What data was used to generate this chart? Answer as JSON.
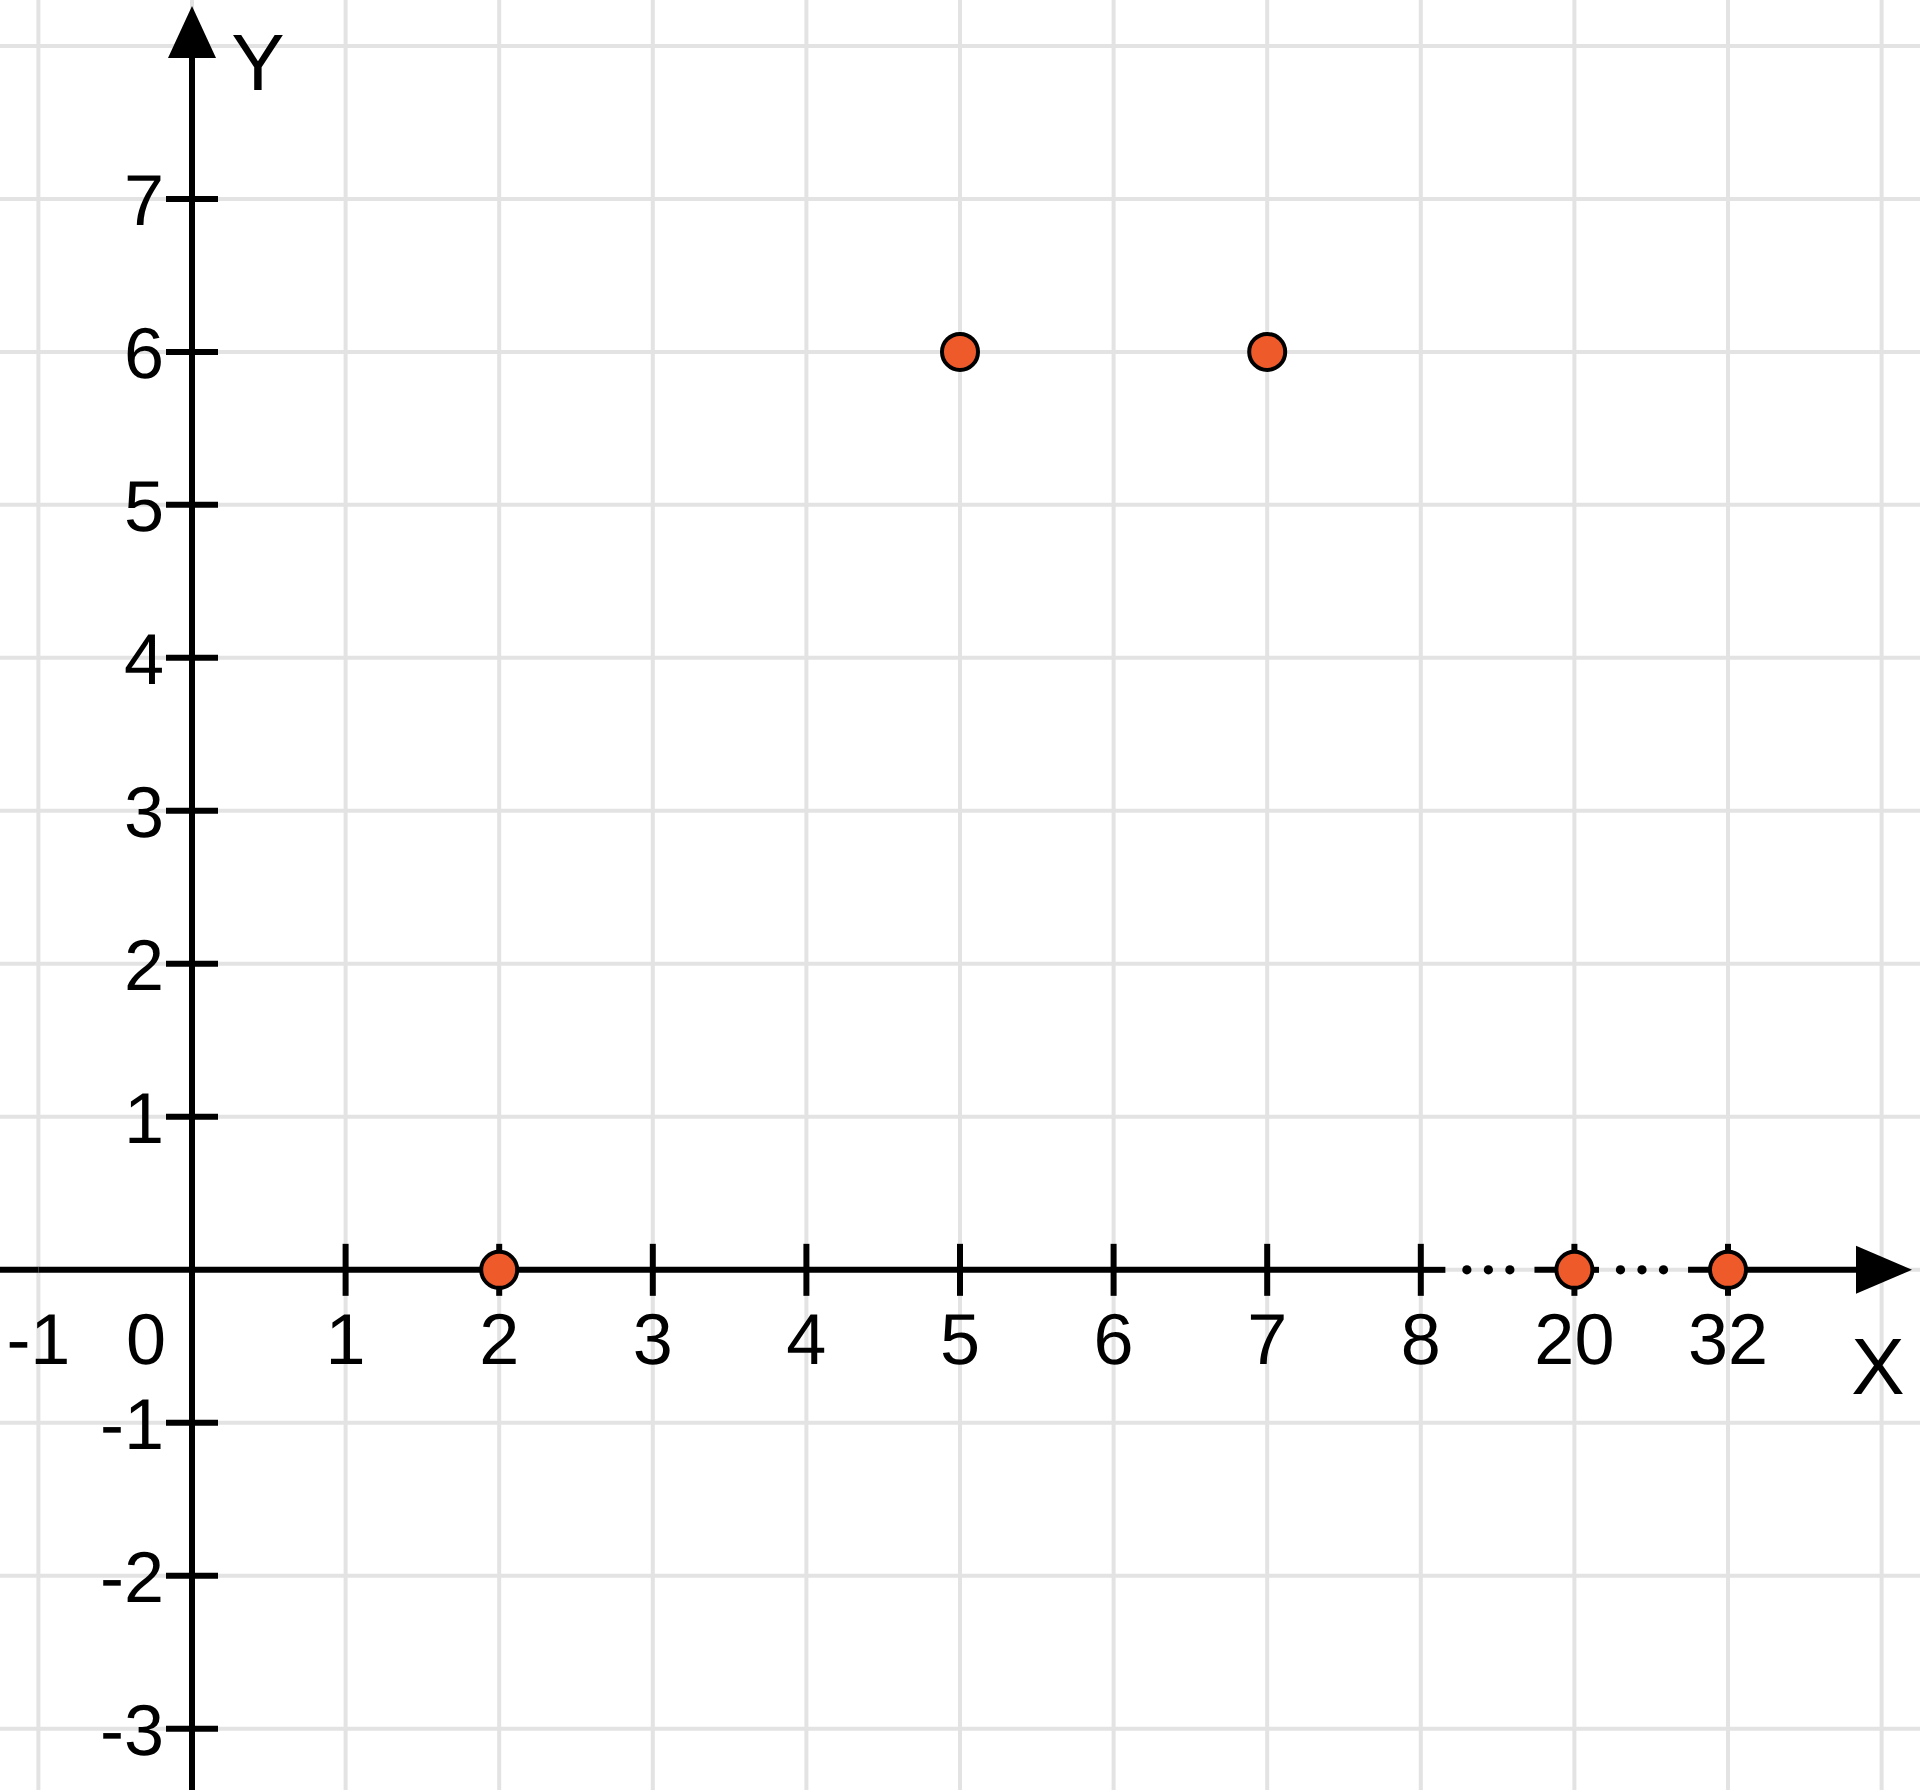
{
  "chart_data": {
    "type": "scatter",
    "xlabel": "X",
    "ylabel": "Y",
    "categories": [
      "-1",
      "0",
      "1",
      "2",
      "3",
      "4",
      "5",
      "6",
      "7",
      "8",
      "20",
      "32"
    ],
    "values": [
      null,
      null,
      null,
      0,
      null,
      null,
      6,
      null,
      6,
      null,
      0,
      0
    ],
    "color": "#ef5a2b",
    "marker": "circle",
    "ylim": [
      -3.4,
      8.3
    ],
    "yticks": [
      -3,
      -2,
      -1,
      1,
      2,
      3,
      4,
      5,
      6,
      7
    ],
    "grid": true
  }
}
